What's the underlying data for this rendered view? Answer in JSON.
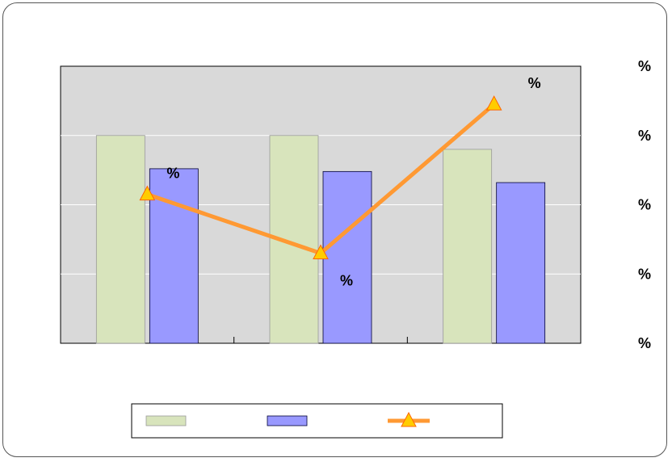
{
  "chart_data": {
    "type": "bar",
    "categories": [
      "",
      "",
      ""
    ],
    "series": [
      {
        "color": "#d8e4bc",
        "values": [
          0.75,
          0.75,
          0.7
        ]
      },
      {
        "color": "#9999ff",
        "values": [
          0.63,
          0.62,
          0.58
        ]
      },
      {
        "type": "line",
        "axis": "right",
        "color": "#ff9933",
        "marker": "triangle",
        "marker_color": "#ffcc00",
        "values": [
          0.43,
          0.26,
          0.69
        ]
      }
    ],
    "ylim": [
      0,
      1
    ],
    "y2lim": [
      0,
      0.8
    ],
    "right_tick_labels": [
      "%",
      "%",
      "%",
      "%",
      "%"
    ],
    "line_data_labels": [
      "%",
      "%",
      "%"
    ],
    "left_partial_label": "",
    "grid": true,
    "plot_background": "#d9d9d9",
    "legend_position": "bottom"
  }
}
